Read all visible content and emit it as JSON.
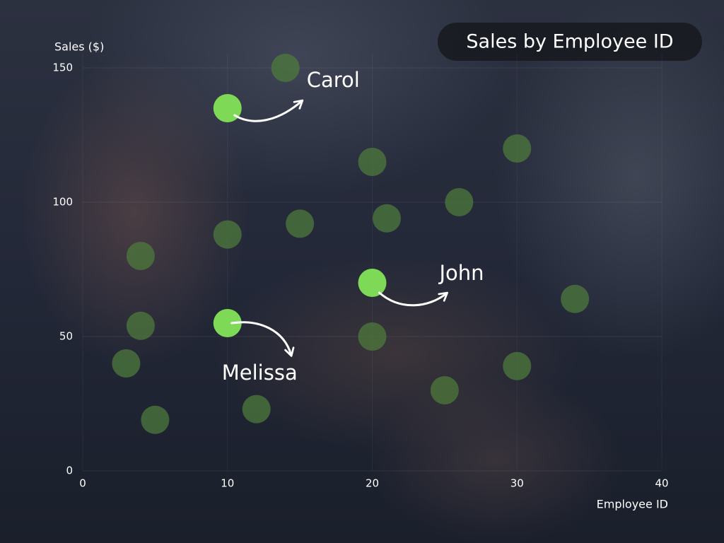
{
  "chart_data": {
    "type": "scatter",
    "title": "Sales by Employee ID",
    "xlabel": "Employee ID",
    "ylabel": "Sales ($)",
    "xlim": [
      0,
      40
    ],
    "ylim": [
      0,
      150
    ],
    "xticks": [
      0,
      10,
      20,
      30,
      40
    ],
    "yticks": [
      0,
      50,
      100,
      150
    ],
    "grid": true,
    "series": [
      {
        "color": "#4e7a3c",
        "x": [
          14,
          20,
          30,
          26,
          21,
          15,
          10,
          4,
          34,
          4,
          20,
          3,
          30,
          25,
          12,
          5
        ],
        "values": [
          150,
          115,
          120,
          100,
          94,
          92,
          88,
          80,
          64,
          54,
          50,
          40,
          39,
          30,
          23,
          19
        ]
      },
      {
        "color": "#7ed957",
        "x": [
          10,
          20,
          10
        ],
        "values": [
          135,
          70,
          55
        ],
        "point_labels": [
          "Carol",
          "John",
          "Melissa"
        ]
      }
    ]
  }
}
